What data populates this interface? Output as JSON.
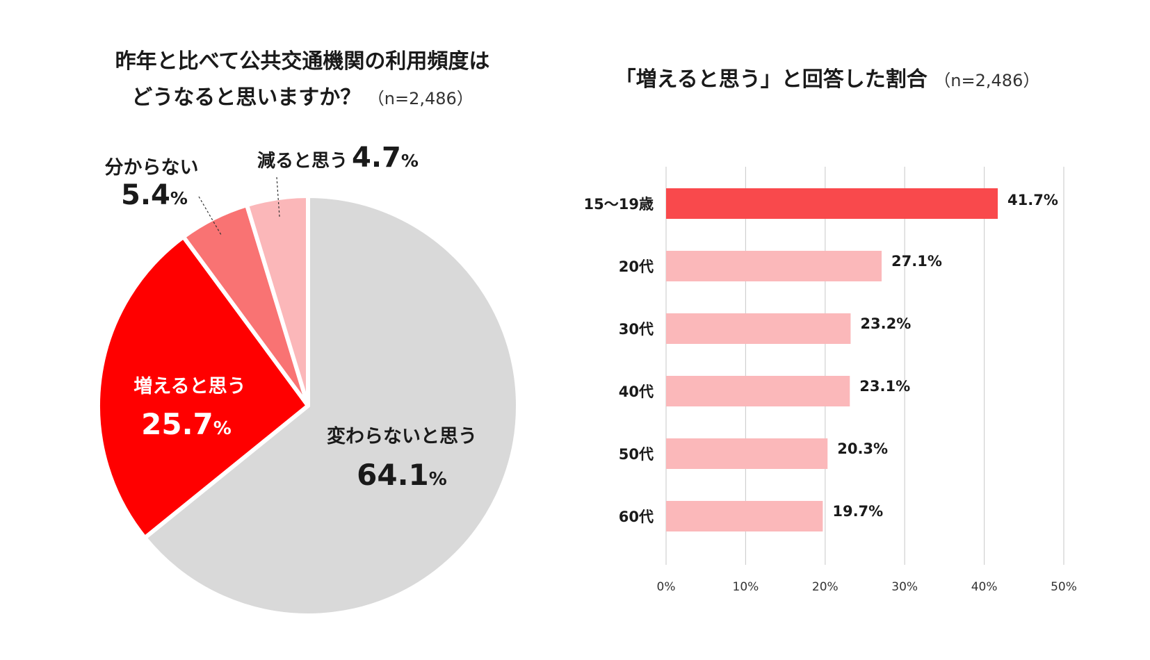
{
  "colors": {
    "pie": [
      "#d9d9d9",
      "#ff0000",
      "#f97373",
      "#fbb7b9"
    ],
    "bar_highlight": "#f9494c",
    "bar_normal": "#fbb8ba",
    "grid": "#d0d0d0"
  },
  "chart_data": [
    {
      "type": "pie",
      "title_line1": "昨年と比べて公共交通機関の利用頻度は",
      "title_line2": "どうなると思いますか？",
      "sample": "（n=2,486）",
      "slices": [
        {
          "label": "変わらないと思う",
          "value": 64.1,
          "display": "64.1",
          "unit": "%"
        },
        {
          "label": "増えると思う",
          "value": 25.7,
          "display": "25.7",
          "unit": "%"
        },
        {
          "label": "分からない",
          "value": 5.4,
          "display": "5.4",
          "unit": "%"
        },
        {
          "label": "減ると思う",
          "value": 4.7,
          "display": "4.7",
          "unit": "%"
        }
      ]
    },
    {
      "type": "bar",
      "orientation": "horizontal",
      "title": "「増えると思う」と回答した割合",
      "sample": "（n=2,486）",
      "categories": [
        "15～19歳",
        "20代",
        "30代",
        "40代",
        "50代",
        "60代"
      ],
      "values": [
        41.7,
        27.1,
        23.2,
        23.1,
        20.3,
        19.7
      ],
      "value_labels": [
        "41.7%",
        "27.1%",
        "23.2%",
        "23.1%",
        "20.3%",
        "19.7%"
      ],
      "highlight_index": 0,
      "xlim": [
        0,
        50
      ],
      "xticks": [
        0,
        10,
        20,
        30,
        40,
        50
      ],
      "xtick_labels": [
        "0%",
        "10%",
        "20%",
        "30%",
        "40%",
        "50%"
      ],
      "grid": true
    }
  ]
}
